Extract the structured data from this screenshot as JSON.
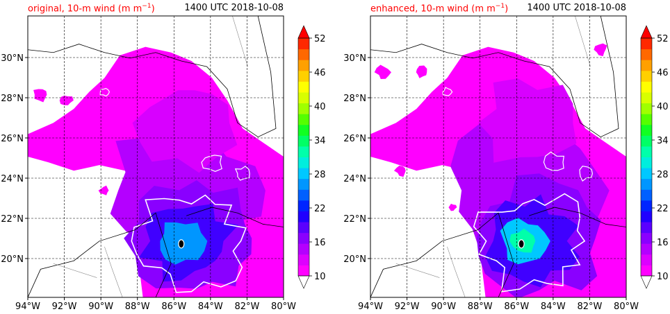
{
  "panels": [
    {
      "title_prefix": "original, 10-m wind (m m",
      "title_exp": "−1",
      "title_suffix": ")",
      "timestamp": "1400 UTC 2018-10-08"
    },
    {
      "title_prefix": "enhanced, 10-m wind (m m",
      "title_exp": "−1",
      "title_suffix": ")",
      "timestamp": "1400 UTC 2018-10-08"
    }
  ],
  "lon_ticks": [
    "94°W",
    "92°W",
    "90°W",
    "88°W",
    "86°W",
    "84°W",
    "82°W",
    "80°W"
  ],
  "lat_ticks": [
    "30°N",
    "28°N",
    "26°N",
    "24°N",
    "22°N",
    "20°N"
  ],
  "colorbar": {
    "labels": [
      "52",
      "46",
      "40",
      "34",
      "28",
      "22",
      "16",
      "10"
    ],
    "colors": [
      "#ff00ff",
      "#dd00ff",
      "#b400ff",
      "#8a00ff",
      "#5a00ff",
      "#2000ff",
      "#0024ff",
      "#0060ff",
      "#0096ff",
      "#00c8ff",
      "#00eedd",
      "#00ffaa",
      "#00ff66",
      "#11ff22",
      "#55ff00",
      "#a0ff00",
      "#d8ff00",
      "#ffff00",
      "#ffd000",
      "#ffa000",
      "#ff6800",
      "#ff2800"
    ],
    "over_color": "#ff0000",
    "under_color": "#ffffff",
    "range": [
      10,
      52
    ]
  },
  "colors": {
    "wind_background": "#ff00ff",
    "wind_mid": "#b400ff",
    "wind_core": "#4000ff",
    "contour": "#ffffff",
    "coast": "#000000",
    "grid": "#000000"
  }
}
